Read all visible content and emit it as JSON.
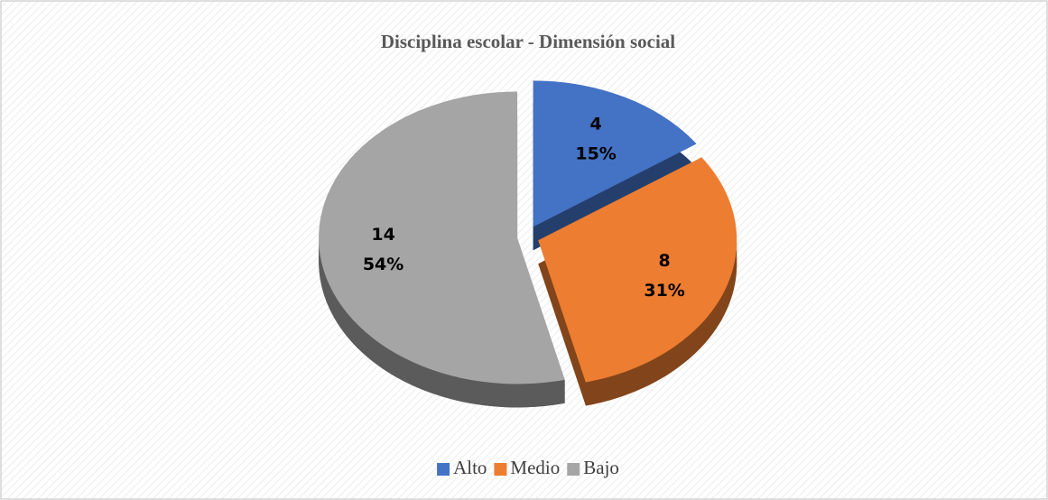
{
  "chart_data": {
    "type": "pie",
    "title": "Disciplina escolar - Dimensión social",
    "categories": [
      "Alto",
      "Medio",
      "Bajo"
    ],
    "values": [
      4,
      8,
      14
    ],
    "percent_labels": [
      "15%",
      "31%",
      "54%"
    ],
    "colors": [
      "#4472c4",
      "#ed7d31",
      "#a5a5a5"
    ],
    "legend": "bottom"
  }
}
